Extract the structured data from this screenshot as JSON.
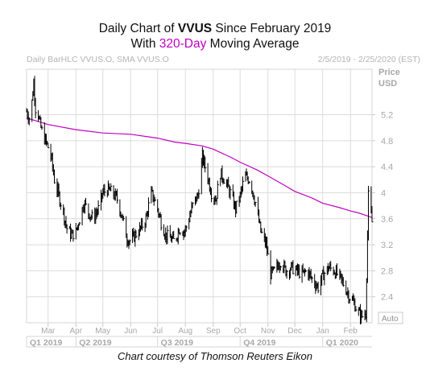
{
  "title": {
    "line1_pre": "Daily Chart of ",
    "line1_ticker": "VVUS",
    "line1_post": " Since February 2019",
    "line2_pre": "With ",
    "line2_highlight": "320-Day",
    "line2_post": " Moving Average"
  },
  "header": {
    "left": "Daily BarHLC VVUS.O, SMA VVUS.O",
    "right": "2/5/2019 - 2/25/2020 (EST)",
    "axis_title_1": "Price",
    "axis_title_2": "USD"
  },
  "auto_button": "Auto",
  "credit": "Chart courtesy of Thomson Reuters Eikon",
  "colors": {
    "price": "#000000",
    "sma": "#c000c0",
    "grid": "#dcdcdc",
    "axis_text": "#a8a8a8"
  },
  "chart_data": {
    "type": "line",
    "ylim": [
      2.0,
      5.9
    ],
    "y_ticks": [
      2.4,
      2.8,
      3.2,
      3.6,
      4,
      4.4,
      4.8,
      5.2
    ],
    "y_tick_labels": [
      "2.4",
      "2.8",
      "3.2",
      "3.6",
      "4",
      "4.4",
      "4.8",
      "5.2"
    ],
    "x_range": [
      "2019-02-05",
      "2020-02-25"
    ],
    "month_ticks": [
      {
        "date": "2019-03-01",
        "label": "Mar"
      },
      {
        "date": "2019-04-01",
        "label": "Apr"
      },
      {
        "date": "2019-05-01",
        "label": "May"
      },
      {
        "date": "2019-06-01",
        "label": "Jun"
      },
      {
        "date": "2019-07-01",
        "label": "Jul"
      },
      {
        "date": "2019-08-01",
        "label": "Aug"
      },
      {
        "date": "2019-09-01",
        "label": "Sep"
      },
      {
        "date": "2019-10-01",
        "label": "Oct"
      },
      {
        "date": "2019-11-01",
        "label": "Nov"
      },
      {
        "date": "2019-12-01",
        "label": "Dec"
      },
      {
        "date": "2020-01-01",
        "label": "Jan"
      },
      {
        "date": "2020-02-01",
        "label": "Feb"
      }
    ],
    "quarters": [
      {
        "date": "2019-02-05",
        "label": "Q1 2019"
      },
      {
        "date": "2019-04-01",
        "label": "Q2 2019"
      },
      {
        "date": "2019-07-01",
        "label": "Q3 2019"
      },
      {
        "date": "2019-10-01",
        "label": "Q4 2019"
      },
      {
        "date": "2020-01-01",
        "label": "Q1 2020"
      }
    ],
    "series": [
      {
        "kind": "price_hlc",
        "x": [
          "2019-02-05",
          "2019-02-08",
          "2019-02-11",
          "2019-02-13",
          "2019-02-15",
          "2019-02-18",
          "2019-02-20",
          "2019-02-22",
          "2019-02-26",
          "2019-03-01",
          "2019-03-05",
          "2019-03-08",
          "2019-03-13",
          "2019-03-18",
          "2019-03-22",
          "2019-03-27",
          "2019-04-01",
          "2019-04-05",
          "2019-04-10",
          "2019-04-15",
          "2019-04-20",
          "2019-04-26",
          "2019-05-01",
          "2019-05-06",
          "2019-05-12",
          "2019-05-17",
          "2019-05-22",
          "2019-05-28",
          "2019-06-01",
          "2019-06-06",
          "2019-06-12",
          "2019-06-18",
          "2019-06-24",
          "2019-06-30",
          "2019-07-05",
          "2019-07-10",
          "2019-07-15",
          "2019-07-20",
          "2019-07-25",
          "2019-07-31",
          "2019-08-05",
          "2019-08-10",
          "2019-08-15",
          "2019-08-20",
          "2019-08-25",
          "2019-08-30",
          "2019-09-04",
          "2019-09-09",
          "2019-09-14",
          "2019-09-20",
          "2019-09-26",
          "2019-10-01",
          "2019-10-06",
          "2019-10-12",
          "2019-10-18",
          "2019-10-24",
          "2019-10-30",
          "2019-11-04",
          "2019-11-09",
          "2019-11-15",
          "2019-11-21",
          "2019-11-27",
          "2019-12-03",
          "2019-12-09",
          "2019-12-15",
          "2019-12-21",
          "2019-12-27",
          "2020-01-02",
          "2020-01-08",
          "2020-01-14",
          "2020-01-20",
          "2020-01-26",
          "2020-01-31",
          "2020-02-05",
          "2020-02-10",
          "2020-02-14",
          "2020-02-18",
          "2020-02-21",
          "2020-02-25"
        ],
        "close": [
          5.25,
          5.15,
          5.4,
          5.7,
          5.3,
          5.2,
          5.05,
          4.95,
          4.8,
          4.7,
          4.5,
          4.2,
          3.95,
          3.7,
          3.45,
          3.35,
          3.4,
          3.6,
          3.85,
          3.7,
          3.6,
          3.75,
          4.0,
          4.05,
          4.0,
          3.9,
          3.65,
          3.3,
          3.25,
          3.35,
          3.45,
          3.6,
          4.0,
          3.8,
          3.55,
          3.35,
          3.3,
          3.25,
          3.45,
          3.4,
          3.6,
          3.85,
          3.95,
          4.55,
          4.3,
          4.0,
          3.9,
          4.3,
          4.2,
          4.0,
          3.75,
          3.95,
          4.25,
          4.2,
          3.85,
          3.4,
          3.2,
          2.75,
          2.8,
          2.95,
          2.8,
          2.85,
          2.8,
          2.75,
          2.8,
          2.65,
          2.55,
          2.75,
          2.85,
          2.8,
          2.7,
          2.55,
          2.4,
          2.3,
          2.15,
          2.1,
          2.15,
          3.95,
          3.55
        ]
      },
      {
        "kind": "sma",
        "x": [
          "2019-02-05",
          "2019-03-01",
          "2019-04-01",
          "2019-05-01",
          "2019-06-01",
          "2019-07-01",
          "2019-07-20",
          "2019-08-01",
          "2019-08-20",
          "2019-09-01",
          "2019-09-20",
          "2019-10-01",
          "2019-10-20",
          "2019-11-01",
          "2019-11-20",
          "2019-12-01",
          "2019-12-20",
          "2020-01-01",
          "2020-01-20",
          "2020-02-01",
          "2020-02-10",
          "2020-02-25"
        ],
        "values": [
          5.15,
          5.05,
          4.97,
          4.92,
          4.9,
          4.84,
          4.78,
          4.76,
          4.72,
          4.67,
          4.55,
          4.47,
          4.35,
          4.26,
          4.11,
          4.02,
          3.92,
          3.84,
          3.77,
          3.72,
          3.69,
          3.62
        ]
      }
    ]
  }
}
